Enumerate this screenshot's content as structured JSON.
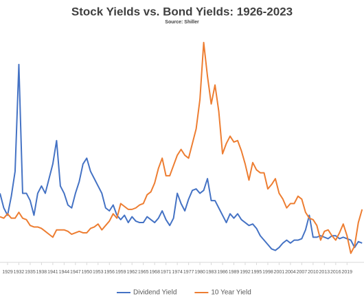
{
  "chart_data": {
    "type": "line",
    "title": "Stock Yields vs. Bond Yields: 1926-2023",
    "subtitle": "Source: Shiller",
    "x": [
      1927,
      1928,
      1929,
      1930,
      1931,
      1932,
      1933,
      1934,
      1935,
      1936,
      1937,
      1938,
      1939,
      1940,
      1941,
      1942,
      1943,
      1944,
      1945,
      1946,
      1947,
      1948,
      1949,
      1950,
      1951,
      1952,
      1953,
      1954,
      1955,
      1956,
      1957,
      1958,
      1959,
      1960,
      1961,
      1962,
      1963,
      1964,
      1965,
      1966,
      1967,
      1968,
      1969,
      1970,
      1971,
      1972,
      1973,
      1974,
      1975,
      1976,
      1977,
      1978,
      1979,
      1980,
      1981,
      1982,
      1983,
      1984,
      1985,
      1986,
      1987,
      1988,
      1989,
      1990,
      1991,
      1992,
      1993,
      1994,
      1995,
      1996,
      1997,
      1998,
      1999,
      2000,
      2001,
      2002,
      2003,
      2004,
      2005,
      2006,
      2007,
      2008,
      2009,
      2010,
      2011,
      2012,
      2013,
      2014,
      2015,
      2016,
      2017,
      2018,
      2019,
      2020,
      2021,
      2022,
      2023
    ],
    "series": [
      {
        "name": "Dividend Yield",
        "color": "#4472c4",
        "values": [
          5.0,
          4.0,
          3.5,
          4.8,
          6.5,
          13.8,
          5.0,
          5.0,
          4.5,
          3.5,
          5.0,
          5.5,
          5.0,
          6.0,
          7.0,
          8.6,
          5.5,
          5.0,
          4.2,
          4.0,
          5.0,
          5.8,
          7.0,
          7.4,
          6.5,
          6.0,
          5.5,
          5.0,
          4.0,
          3.8,
          4.2,
          3.5,
          3.2,
          3.5,
          3.0,
          3.4,
          3.1,
          3.0,
          3.0,
          3.4,
          3.2,
          3.0,
          3.3,
          3.8,
          3.2,
          2.8,
          3.3,
          5.0,
          4.3,
          3.8,
          4.6,
          5.2,
          5.3,
          5.0,
          5.2,
          6.0,
          4.5,
          4.5,
          4.0,
          3.5,
          3.0,
          3.6,
          3.3,
          3.6,
          3.2,
          3.0,
          2.8,
          2.9,
          2.6,
          2.1,
          1.8,
          1.5,
          1.2,
          1.1,
          1.3,
          1.6,
          1.8,
          1.6,
          1.8,
          1.8,
          1.9,
          2.5,
          3.5,
          2.0,
          2.0,
          2.1,
          2.0,
          1.9,
          2.1,
          2.1,
          1.9,
          2.0,
          1.9,
          1.8,
          1.3,
          1.7,
          1.6
        ]
      },
      {
        "name": "10 Year Yield",
        "color": "#ed7d31",
        "values": [
          3.4,
          3.3,
          3.6,
          3.3,
          3.3,
          3.7,
          3.3,
          3.2,
          2.8,
          2.7,
          2.7,
          2.6,
          2.4,
          2.2,
          2.0,
          2.5,
          2.5,
          2.5,
          2.4,
          2.2,
          2.3,
          2.4,
          2.3,
          2.3,
          2.6,
          2.7,
          2.9,
          2.5,
          2.8,
          3.1,
          3.6,
          3.3,
          4.3,
          4.1,
          3.9,
          3.9,
          4.0,
          4.2,
          4.3,
          4.9,
          5.1,
          5.7,
          6.7,
          7.4,
          6.2,
          6.2,
          6.9,
          7.6,
          8.0,
          7.6,
          7.4,
          8.4,
          9.4,
          11.4,
          15.3,
          13.0,
          11.1,
          12.4,
          10.6,
          7.7,
          8.4,
          8.9,
          8.5,
          8.6,
          7.9,
          7.0,
          5.9,
          7.1,
          6.6,
          6.4,
          6.4,
          5.3,
          5.6,
          6.0,
          5.0,
          4.6,
          4.0,
          4.3,
          4.3,
          4.8,
          4.6,
          3.7,
          3.3,
          3.2,
          2.8,
          1.8,
          2.4,
          2.5,
          2.1,
          1.8,
          2.3,
          2.9,
          2.1,
          0.9,
          1.4,
          3.0,
          3.9
        ]
      }
    ],
    "xlim": [
      1927,
      2023.5
    ],
    "xticks": [
      1929,
      1932,
      1935,
      1938,
      1941,
      1944,
      1947,
      1950,
      1953,
      1956,
      1959,
      1962,
      1965,
      1968,
      1971,
      1974,
      1977,
      1980,
      1983,
      1986,
      1989,
      1992,
      1995,
      1998,
      2001,
      2004,
      2007,
      2010,
      2013,
      2016,
      2019
    ],
    "ylim": [
      0,
      16
    ],
    "grid": false,
    "legend": "bottom"
  }
}
